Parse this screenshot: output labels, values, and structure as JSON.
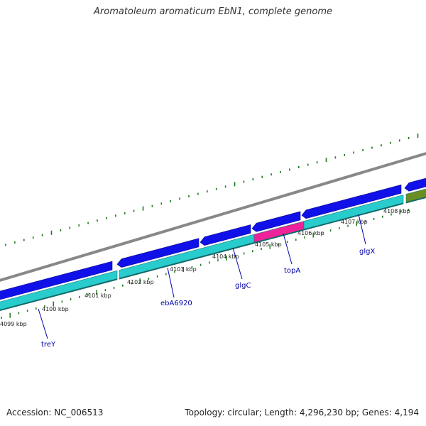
{
  "title": "Aromatoleum aromaticum EbN1, complete genome",
  "footer": {
    "accession": "Accession: NC_006513",
    "stats": "Topology: circular; Length: 4,296,230 bp; Genes: 4,194"
  },
  "ticks": [
    "4099 kbp",
    "4100 kbp",
    "4101 kbp",
    "4102 kbp",
    "4103 kbp",
    "4104 kbp",
    "4105 kbp",
    "4106 kbp",
    "4107 kbp",
    "4108 kbp"
  ],
  "gene_labels": [
    "treY",
    "ebA6920",
    "glgC",
    "topA",
    "glgX"
  ],
  "colors": {
    "backbone": "#888888",
    "forward_gene": "#1010e8",
    "reverse_gene": "#29cccc",
    "highlight_gene": "#ee2299",
    "other_gene": "#6b8e23",
    "tick_mark": "#1a7a1a",
    "label": "#0000aa"
  }
}
